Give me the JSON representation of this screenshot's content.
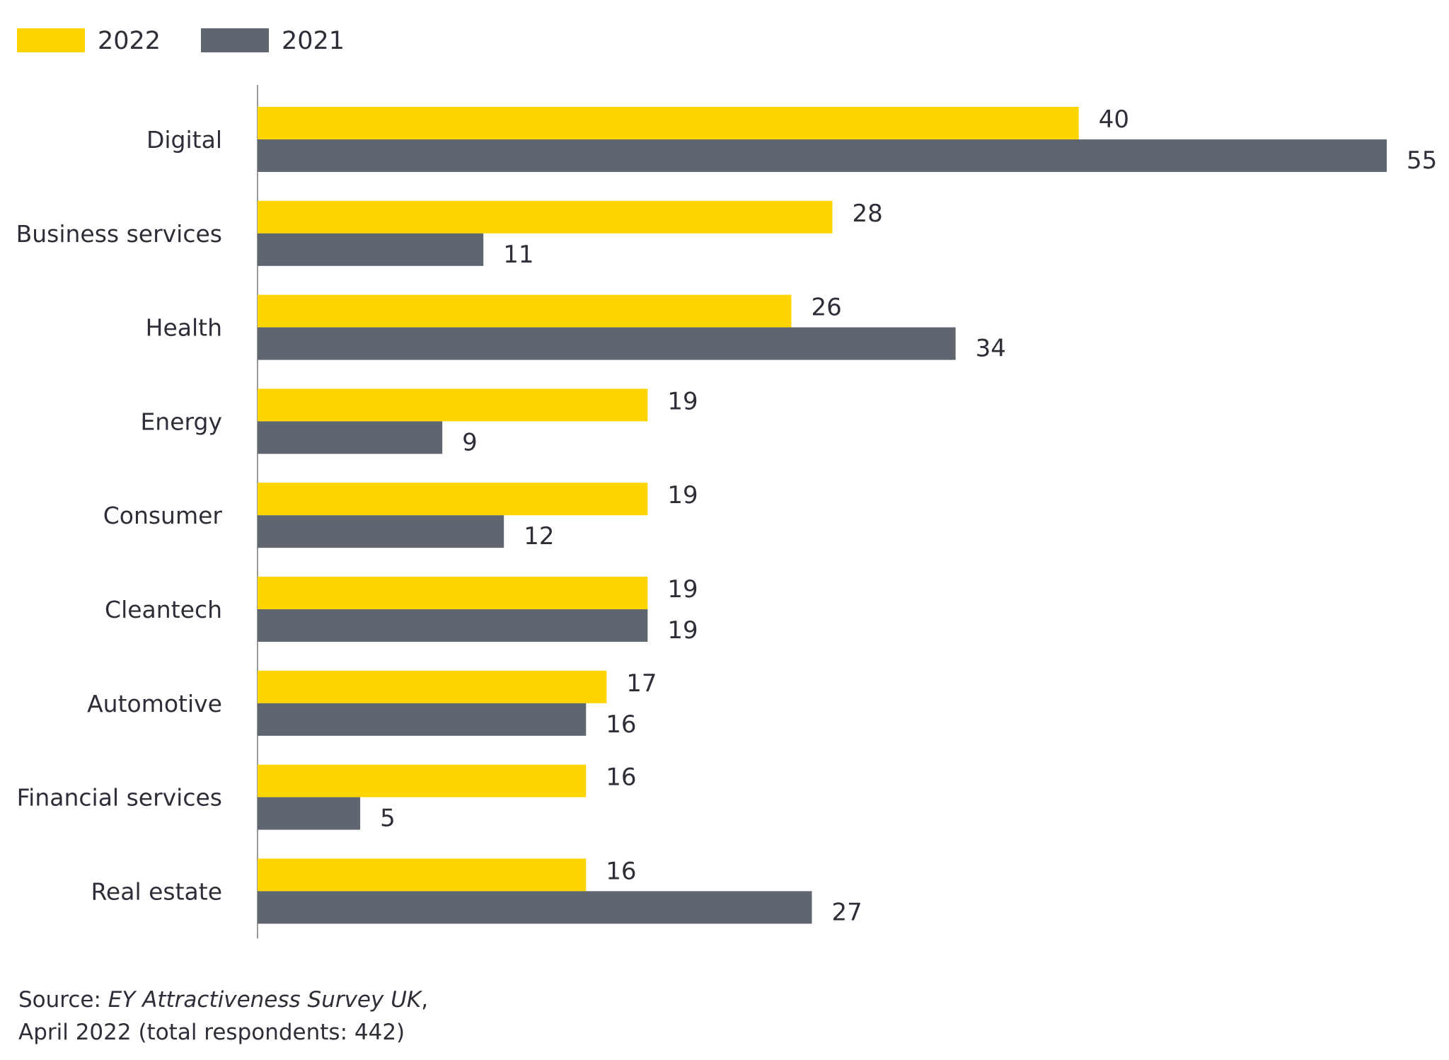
{
  "chart_data": {
    "type": "bar",
    "orientation": "horizontal",
    "title": "",
    "xlabel": "",
    "ylabel": "",
    "xlim": [
      0,
      55
    ],
    "grid": false,
    "legend_position": "top-left",
    "categories": [
      "Digital",
      "Business services",
      "Health",
      "Energy",
      "Consumer",
      "Cleantech",
      "Automotive",
      "Financial services",
      "Real estate"
    ],
    "series": [
      {
        "name": "2022",
        "color": "#ffd500",
        "values": [
          40,
          28,
          26,
          19,
          19,
          19,
          17,
          16,
          16
        ]
      },
      {
        "name": "2021",
        "color": "#5f6670",
        "values": [
          55,
          11,
          34,
          9,
          12,
          19,
          16,
          5,
          27
        ]
      }
    ]
  },
  "source": {
    "prefix": "Source: ",
    "title": "EY Attractiveness Survey UK",
    "suffix": ",",
    "line2": "April 2022 (total respondents: 442)"
  },
  "colors": {
    "axis": "#9a9a9a",
    "text": "#2e2e38"
  }
}
